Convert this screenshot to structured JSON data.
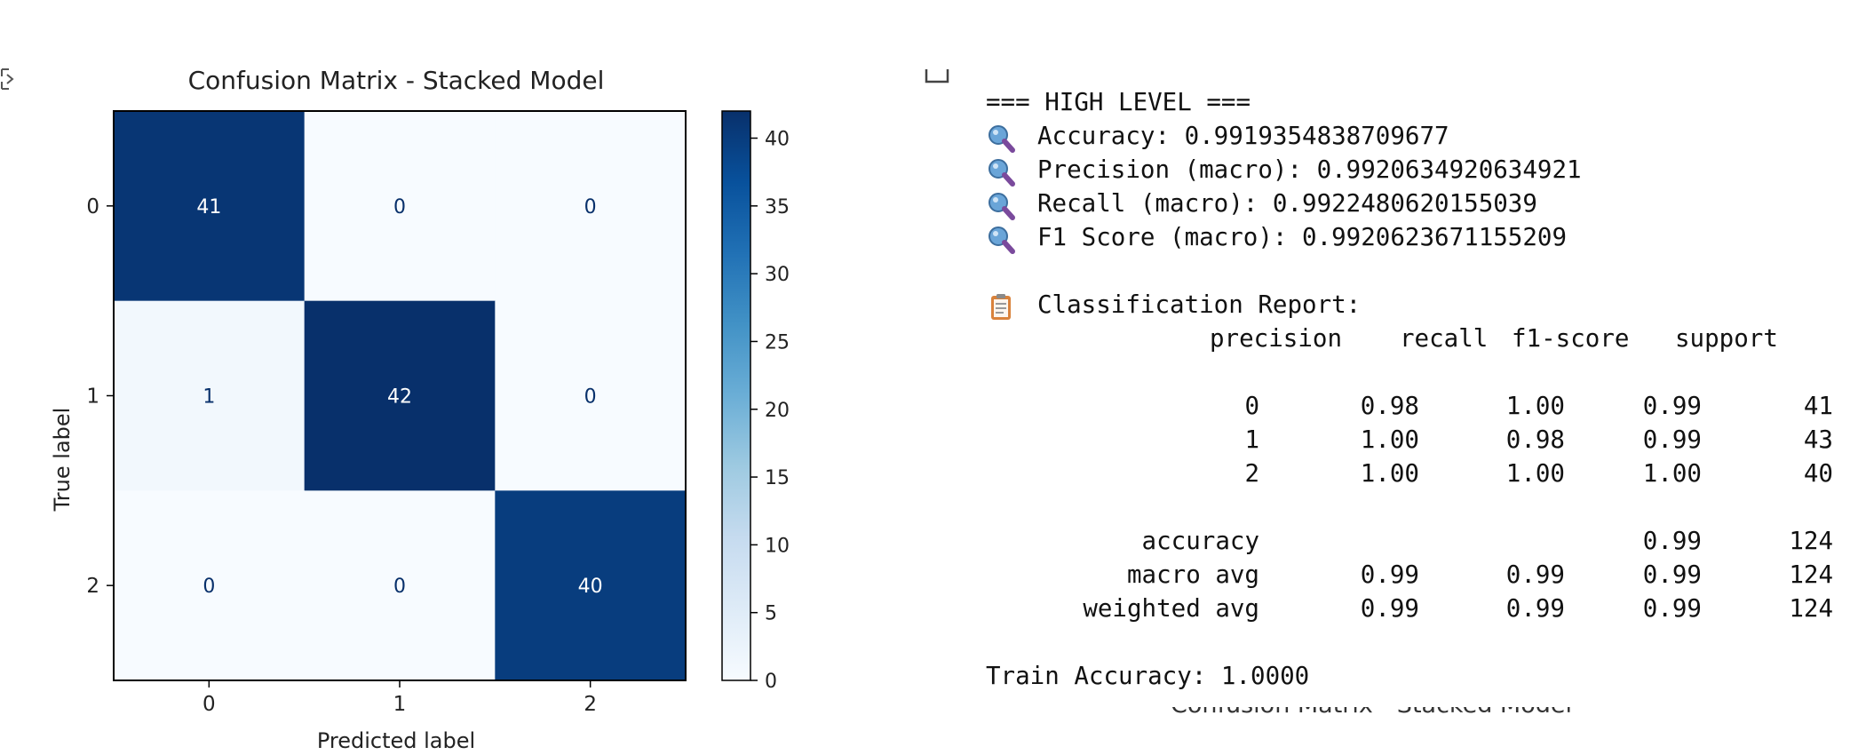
{
  "chart_data": {
    "type": "heatmap",
    "title": "Confusion Matrix - Stacked Model",
    "xlabel": "Predicted label",
    "ylabel": "True label",
    "x_categories": [
      "0",
      "1",
      "2"
    ],
    "y_categories": [
      "0",
      "1",
      "2"
    ],
    "matrix": [
      [
        41,
        0,
        0
      ],
      [
        1,
        42,
        0
      ],
      [
        0,
        0,
        40
      ]
    ],
    "colormap": "Blues",
    "colorbar": {
      "vmin": 0,
      "vmax": 42,
      "ticks": [
        0,
        5,
        10,
        15,
        20,
        25,
        30,
        35,
        40
      ]
    }
  },
  "output": {
    "high_level_header": "=== HIGH LEVEL ===",
    "metrics": [
      {
        "icon": "magnifier-icon",
        "text": "Accuracy: 0.9919354838709677"
      },
      {
        "icon": "magnifier-icon",
        "text": "Precision (macro): 0.9920634920634921"
      },
      {
        "icon": "magnifier-icon",
        "text": "Recall (macro): 0.9922480620155039"
      },
      {
        "icon": "magnifier-icon",
        "text": "F1 Score (macro): 0.9920623671155209"
      }
    ],
    "report_title": {
      "icon": "clipboard-icon",
      "text": "Classification Report:"
    },
    "report_headers": [
      "precision",
      "recall",
      "f1-score",
      "support"
    ],
    "report_rows": [
      {
        "label": "0",
        "precision": "0.98",
        "recall": "1.00",
        "f1": "0.99",
        "support": "41"
      },
      {
        "label": "1",
        "precision": "1.00",
        "recall": "0.98",
        "f1": "0.99",
        "support": "43"
      },
      {
        "label": "2",
        "precision": "1.00",
        "recall": "1.00",
        "f1": "1.00",
        "support": "40"
      }
    ],
    "summary_rows": [
      {
        "label": "accuracy",
        "precision": "",
        "recall": "",
        "f1": "0.99",
        "support": "124"
      },
      {
        "label": "macro avg",
        "precision": "0.99",
        "recall": "0.99",
        "f1": "0.99",
        "support": "124"
      },
      {
        "label": "weighted avg",
        "precision": "0.99",
        "recall": "0.99",
        "f1": "0.99",
        "support": "124"
      }
    ],
    "train_accuracy": "Train Accuracy: 1.0000",
    "cutoff_text": "Confusion Matrix - Stacked Model"
  },
  "colors": {
    "magnifier_lens": "#6aa5d8",
    "magnifier_handle": "#7a4a9c",
    "clipboard": "#d9823b"
  }
}
